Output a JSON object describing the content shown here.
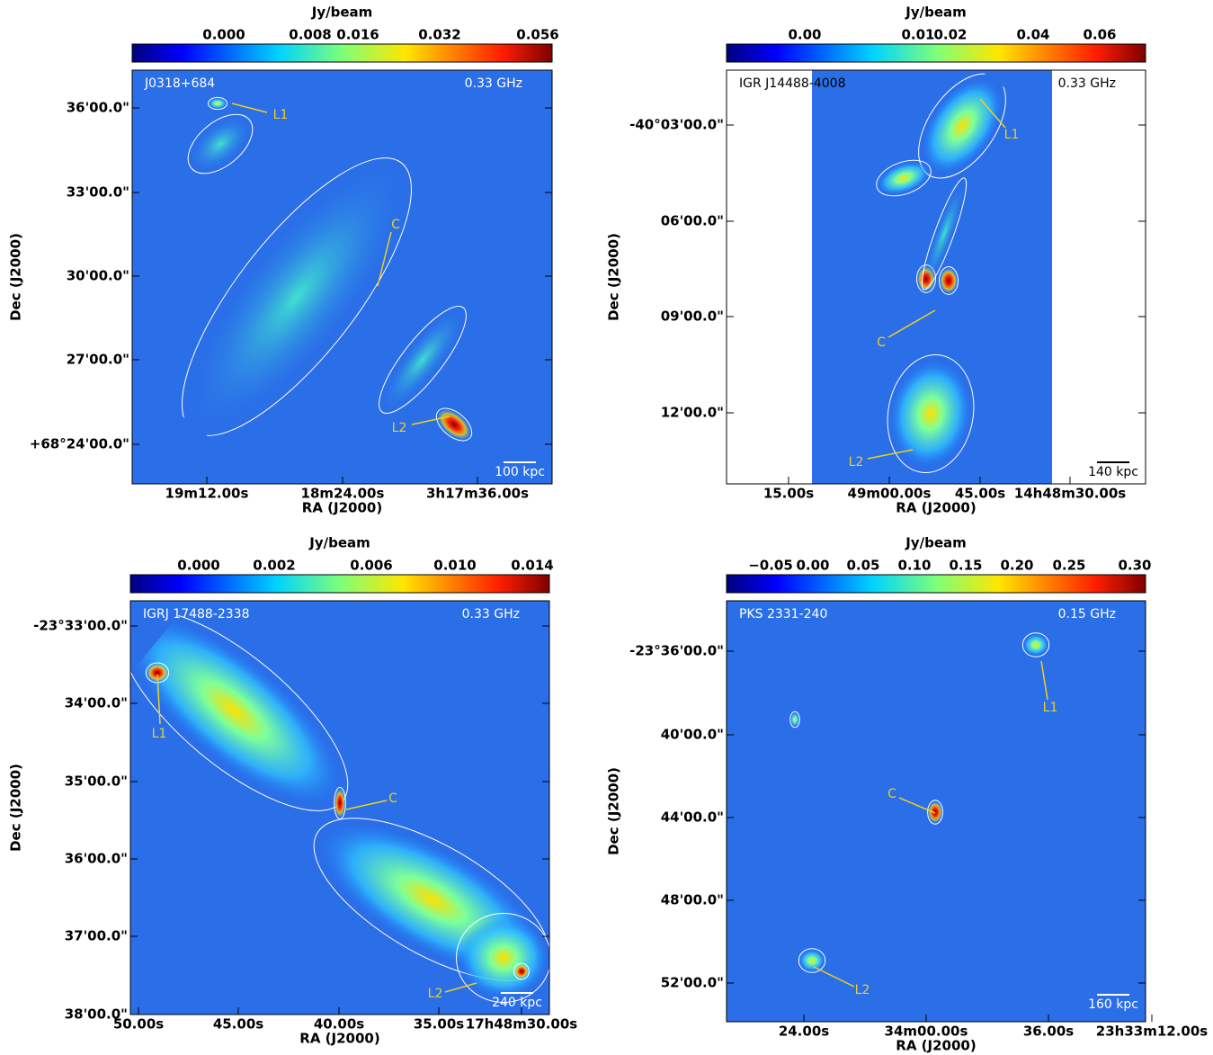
{
  "panels": [
    {
      "colorbar_label": "Jy/beam",
      "colorbar_ticks": [
        "0.000",
        "0.008",
        "0.016",
        "0.032",
        "0.056"
      ],
      "source": "J0318+684",
      "frequency": "0.33 GHz",
      "yticks": [
        "36'00.0\"",
        "33'00.0\"",
        "30'00.0\"",
        "27'00.0\"",
        "+68°24'00.0\""
      ],
      "xticks": [
        "19m12.00s",
        "18m24.00s",
        "3h17m36.00s"
      ],
      "xlabel": "RA (J2000)",
      "ylabel": "Dec (J2000)",
      "annotations": [
        "L1",
        "C",
        "L2"
      ],
      "scale_bar": "100 kpc"
    },
    {
      "colorbar_label": "Jy/beam",
      "colorbar_ticks": [
        "0.00",
        "0.01",
        "0.02",
        "0.04",
        "0.06"
      ],
      "source": "IGR J14488-4008",
      "frequency": "0.33 GHz",
      "yticks": [
        "-40°03'00.0\"",
        "06'00.0\"",
        "09'00.0\"",
        "12'00.0\""
      ],
      "xticks": [
        "15.00s",
        "49m00.00s",
        "45.00s",
        "14h48m30.00s"
      ],
      "xlabel": "RA (J2000)",
      "ylabel": "Dec (J2000)",
      "annotations": [
        "L1",
        "C",
        "L2"
      ],
      "scale_bar": "140 kpc"
    },
    {
      "colorbar_label": "Jy/beam",
      "colorbar_ticks": [
        "0.000",
        "0.002",
        "0.006",
        "0.010",
        "0.014"
      ],
      "source": "IGRJ 17488-2338",
      "frequency": "0.33 GHz",
      "yticks": [
        "-23°33'00.0\"",
        "34'00.0\"",
        "35'00.0\"",
        "36'00.0\"",
        "37'00.0\"",
        "38'00.0\""
      ],
      "xticks": [
        "50.00s",
        "45.00s",
        "40.00s",
        "35.00s",
        "17h48m30.00s"
      ],
      "xlabel": "RA (J2000)",
      "ylabel": "Dec (J2000)",
      "annotations": [
        "L1",
        "C",
        "L2"
      ],
      "scale_bar": "240 kpc"
    },
    {
      "colorbar_label": "Jy/beam",
      "colorbar_ticks": [
        "−0.05",
        "0.00",
        "0.05",
        "0.10",
        "0.15",
        "0.20",
        "0.25",
        "0.30"
      ],
      "source": "PKS 2331-240",
      "frequency": "0.15 GHz",
      "yticks": [
        "-23°36'00.0\"",
        "40'00.0\"",
        "44'00.0\"",
        "48'00.0\"",
        "52'00.0\""
      ],
      "xticks": [
        "24.00s",
        "34m00.00s",
        "36.00s",
        "23h33m12.00s"
      ],
      "xlabel": "RA (J2000)",
      "ylabel": "Dec (J2000)",
      "annotations": [
        "L1",
        "C",
        "L2"
      ],
      "scale_bar": "160 kpc"
    }
  ]
}
